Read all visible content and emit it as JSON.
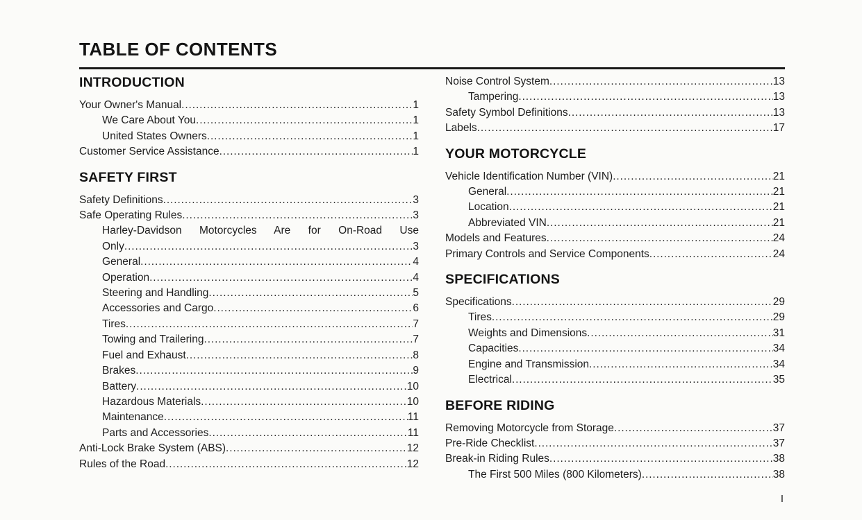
{
  "page": {
    "title": "TABLE OF CONTENTS",
    "footer_page_number": "I",
    "text_color": "#1b1b1b",
    "background_color": "#fbfbf9"
  },
  "columns": [
    {
      "sections": [
        {
          "heading": "INTRODUCTION",
          "entries": [
            {
              "label": "Your Owner's Manual",
              "page": "1",
              "indent": 0
            },
            {
              "label": "We Care About You",
              "page": "1",
              "indent": 1
            },
            {
              "label": "United States Owners",
              "page": "1",
              "indent": 1
            },
            {
              "label": "Customer Service Assistance",
              "page": "1",
              "indent": 0
            }
          ]
        },
        {
          "heading": "SAFETY FIRST",
          "entries": [
            {
              "label": "Safety Definitions",
              "page": "3",
              "indent": 0
            },
            {
              "label": "Safe Operating Rules",
              "page": "3",
              "indent": 0
            },
            {
              "label": "Harley-Davidson Motorcycles Are for On-Road Use",
              "label_cont": "Only",
              "page": "3",
              "indent": 1
            },
            {
              "label": "General",
              "page": "4",
              "indent": 1
            },
            {
              "label": "Operation",
              "page": "4",
              "indent": 1
            },
            {
              "label": "Steering and Handling",
              "page": "5",
              "indent": 1
            },
            {
              "label": "Accessories and Cargo",
              "page": "6",
              "indent": 1
            },
            {
              "label": "Tires",
              "page": "7",
              "indent": 1
            },
            {
              "label": "Towing and Trailering",
              "page": "7",
              "indent": 1
            },
            {
              "label": "Fuel and Exhaust",
              "page": "8",
              "indent": 1
            },
            {
              "label": "Brakes",
              "page": "9",
              "indent": 1
            },
            {
              "label": "Battery",
              "page": "10",
              "indent": 1
            },
            {
              "label": "Hazardous Materials",
              "page": "10",
              "indent": 1
            },
            {
              "label": "Maintenance",
              "page": "11",
              "indent": 1
            },
            {
              "label": "Parts and Accessories",
              "page": "11",
              "indent": 1
            },
            {
              "label": "Anti-Lock Brake System (ABS)",
              "page": "12",
              "indent": 0
            },
            {
              "label": "Rules of the Road",
              "page": "12",
              "indent": 0
            }
          ]
        }
      ]
    },
    {
      "sections": [
        {
          "heading": null,
          "entries": [
            {
              "label": "Noise Control System",
              "page": "13",
              "indent": 0
            },
            {
              "label": "Tampering",
              "page": "13",
              "indent": 1
            },
            {
              "label": "Safety Symbol Definitions",
              "page": "13",
              "indent": 0
            },
            {
              "label": "Labels",
              "page": "17",
              "indent": 0
            }
          ]
        },
        {
          "heading": "YOUR MOTORCYCLE",
          "entries": [
            {
              "label": "Vehicle Identification Number (VIN)",
              "page": "21",
              "indent": 0
            },
            {
              "label": "General",
              "page": "21",
              "indent": 1
            },
            {
              "label": "Location",
              "page": "21",
              "indent": 1
            },
            {
              "label": "Abbreviated VIN",
              "page": "21",
              "indent": 1
            },
            {
              "label": "Models and Features",
              "page": "24",
              "indent": 0
            },
            {
              "label": "Primary Controls and Service Components",
              "page": "24",
              "indent": 0
            }
          ]
        },
        {
          "heading": "SPECIFICATIONS",
          "entries": [
            {
              "label": "Specifications",
              "page": "29",
              "indent": 0
            },
            {
              "label": "Tires",
              "page": "29",
              "indent": 1
            },
            {
              "label": "Weights and Dimensions",
              "page": "31",
              "indent": 1
            },
            {
              "label": "Capacities",
              "page": "34",
              "indent": 1
            },
            {
              "label": "Engine and Transmission",
              "page": "34",
              "indent": 1
            },
            {
              "label": "Electrical",
              "page": "35",
              "indent": 1
            }
          ]
        },
        {
          "heading": "BEFORE RIDING",
          "entries": [
            {
              "label": "Removing Motorcycle from Storage",
              "page": "37",
              "indent": 0
            },
            {
              "label": "Pre-Ride Checklist",
              "page": "37",
              "indent": 0
            },
            {
              "label": "Break-in Riding Rules",
              "page": "38",
              "indent": 0
            },
            {
              "label": "The First 500 Miles (800 Kilometers)",
              "page": "38",
              "indent": 1
            }
          ]
        }
      ]
    }
  ]
}
